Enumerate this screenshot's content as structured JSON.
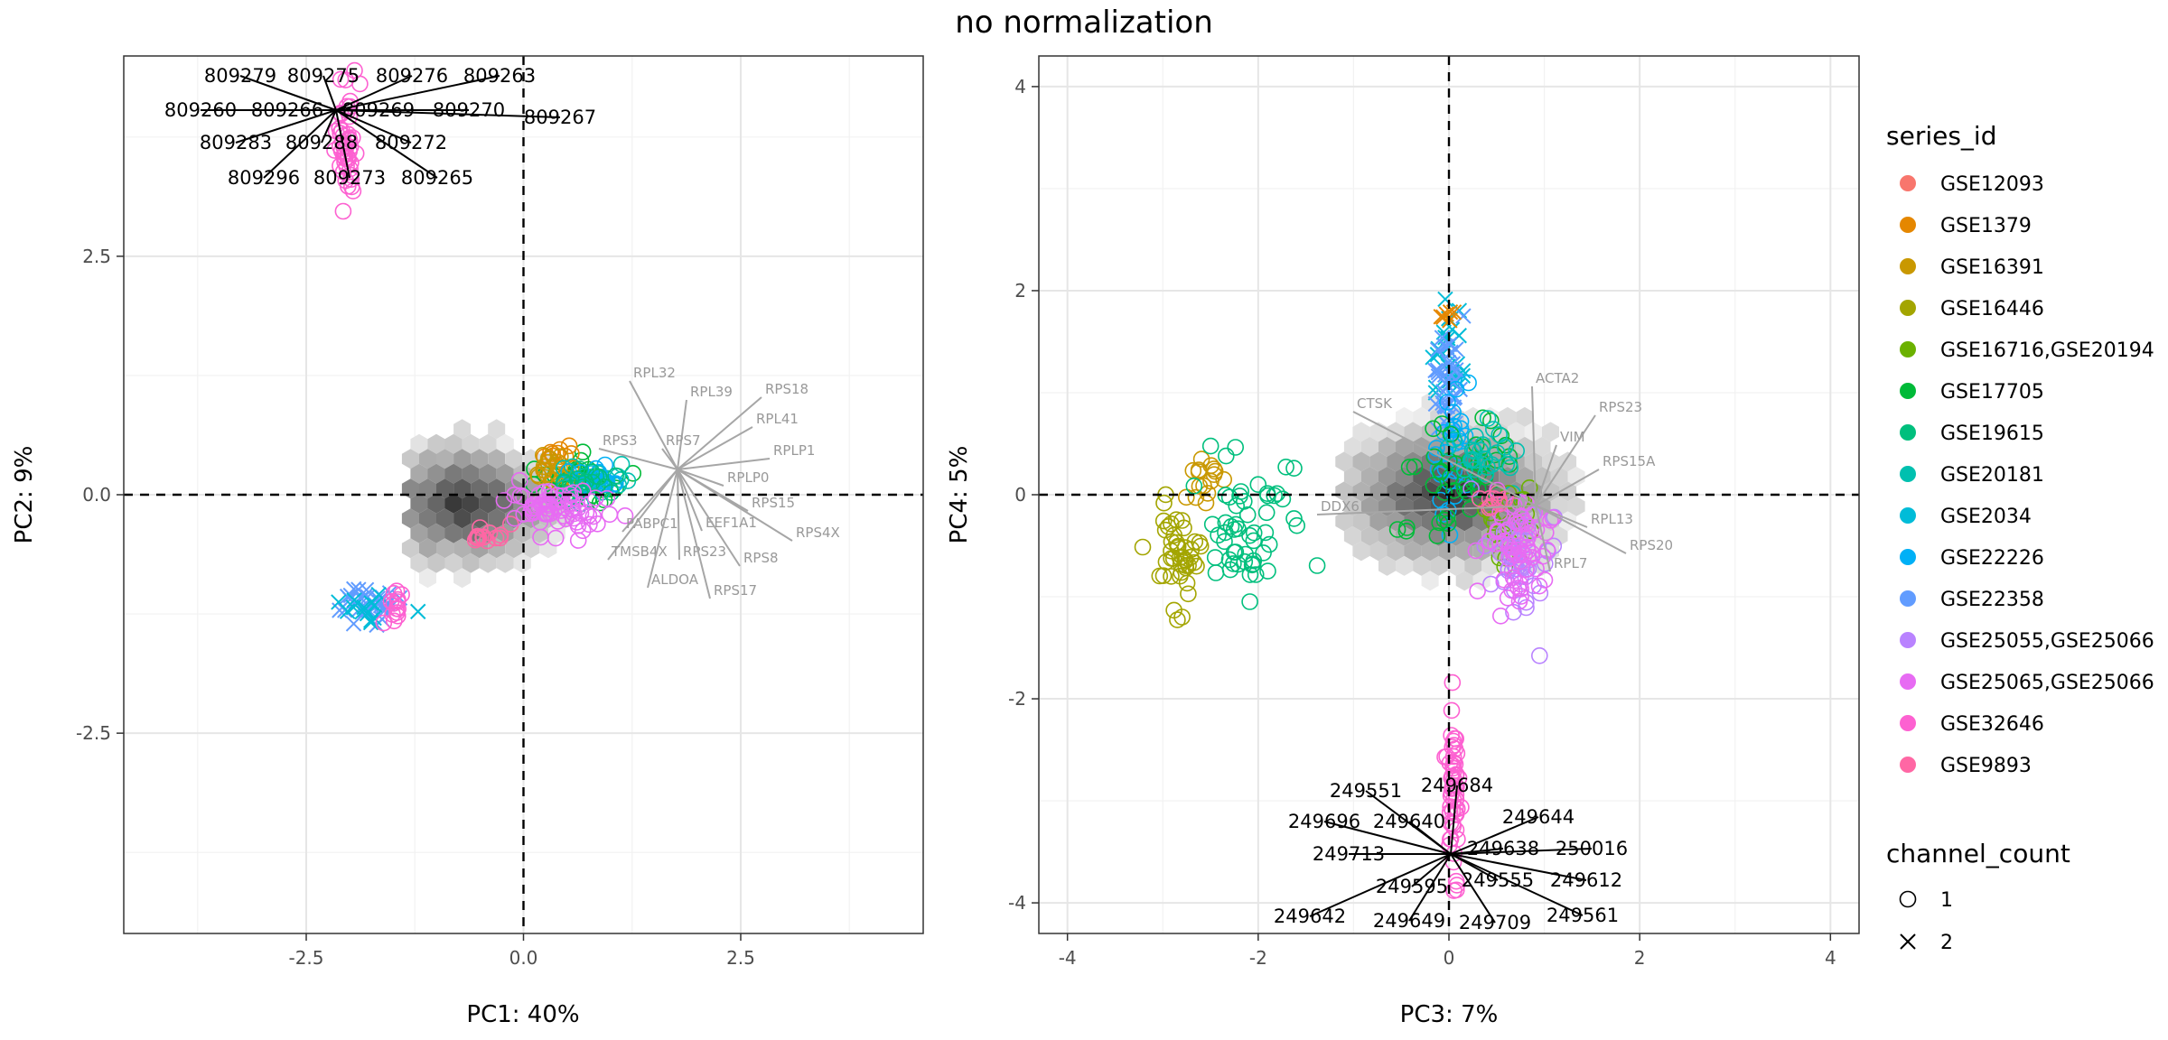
{
  "title": "no normalization",
  "colors": {
    "GSE12093": "#F8766D",
    "GSE1379": "#E58700",
    "GSE16391": "#C99800",
    "GSE16446": "#A3A500",
    "GSE16716,GSE20194": "#6BB100",
    "GSE17705": "#00BA38",
    "GSE19615": "#00BF7D",
    "GSE20181": "#00C0AF",
    "GSE2034": "#00BCD8",
    "GSE22226": "#00B0F6",
    "GSE22358": "#619CFF",
    "GSE25055,GSE25066": "#B983FF",
    "GSE25065,GSE25066": "#E76BF3",
    "GSE32646": "#FD61D1",
    "GSE9893": "#FF67A4"
  },
  "legend": {
    "series_title": "series_id",
    "series": [
      "GSE12093",
      "GSE1379",
      "GSE16391",
      "GSE16446",
      "GSE16716,GSE20194",
      "GSE17705",
      "GSE19615",
      "GSE20181",
      "GSE2034",
      "GSE22226",
      "GSE22358",
      "GSE25055,GSE25066",
      "GSE25065,GSE25066",
      "GSE32646",
      "GSE9893"
    ],
    "shape_title": "channel_count",
    "shapes": [
      {
        "label": "1",
        "shape": "circle"
      },
      {
        "label": "2",
        "shape": "cross"
      }
    ]
  },
  "chart_data": [
    {
      "type": "scatter",
      "xlabel": "PC1: 40%",
      "ylabel": "PC2: 9%",
      "xlim": [
        -4.6,
        4.6
      ],
      "ylim": [
        -4.6,
        4.6
      ],
      "xticks": [
        -2.5,
        0.0,
        2.5
      ],
      "yticks": [
        -2.5,
        0.0,
        2.5
      ],
      "xtick_labels": [
        "-2.5",
        "0.0",
        "2.5"
      ],
      "ytick_labels": [
        "-2.5",
        "0.0",
        "2.5"
      ],
      "grid": true,
      "clusters": [
        {
          "series": "GSE32646",
          "shape": "circle",
          "cx": -2.05,
          "cy": 3.7,
          "sx": 0.06,
          "sy": 0.3,
          "n": 50
        },
        {
          "series": "GSE22358",
          "shape": "cross",
          "cx": -1.75,
          "cy": -1.15,
          "sx": 0.22,
          "sy": 0.1,
          "n": 30
        },
        {
          "series": "GSE2034",
          "shape": "cross",
          "cx": -1.8,
          "cy": -1.2,
          "sx": 0.2,
          "sy": 0.1,
          "n": 14
        },
        {
          "series": "GSE32646",
          "shape": "circle",
          "cx": -1.5,
          "cy": -1.1,
          "sx": 0.05,
          "sy": 0.2,
          "n": 14
        },
        {
          "series": "GSE17705",
          "shape": "circle",
          "cx": 0.6,
          "cy": 0.15,
          "sx": 0.25,
          "sy": 0.12,
          "n": 40
        },
        {
          "series": "GSE1379",
          "shape": "circle",
          "cx": 0.4,
          "cy": 0.4,
          "sx": 0.1,
          "sy": 0.06,
          "n": 14
        },
        {
          "series": "GSE16391",
          "shape": "circle",
          "cx": 0.3,
          "cy": 0.25,
          "sx": 0.15,
          "sy": 0.1,
          "n": 18
        },
        {
          "series": "GSE20181",
          "shape": "circle",
          "cx": 0.7,
          "cy": 0.15,
          "sx": 0.2,
          "sy": 0.1,
          "n": 25
        },
        {
          "series": "GSE22226",
          "shape": "circle",
          "cx": 0.8,
          "cy": 0.2,
          "sx": 0.15,
          "sy": 0.08,
          "n": 15
        },
        {
          "series": "GSE19615",
          "shape": "circle",
          "cx": 0.7,
          "cy": 0.1,
          "sx": 0.2,
          "sy": 0.1,
          "n": 20
        },
        {
          "series": "GSE9893",
          "shape": "circle",
          "cx": -0.4,
          "cy": -0.45,
          "sx": 0.15,
          "sy": 0.05,
          "n": 15
        },
        {
          "series": "GSE25065,GSE25066",
          "shape": "circle",
          "cx": 0.4,
          "cy": -0.15,
          "sx": 0.3,
          "sy": 0.12,
          "n": 70
        }
      ],
      "loadings_labels": [
        "RPL39",
        "RPS18",
        "RPL32",
        "RPL41",
        "RPS7",
        "RPLP1",
        "RPS3",
        "RPLP0",
        "RPS15",
        "RPS4X",
        "PABPC1",
        "EEF1A1",
        "TMSB4X",
        "RPS23",
        "RPS8",
        "ALDOA",
        "RPS17"
      ],
      "point_labels": [
        "809279",
        "809275",
        "809276",
        "809263",
        "809260",
        "809266",
        "809269",
        "809270",
        "809267",
        "809283",
        "809288",
        "809272",
        "809296",
        "809273",
        "809265"
      ]
    },
    {
      "type": "scatter",
      "xlabel": "PC3: 7%",
      "ylabel": "PC4: 5%",
      "xlim": [
        -4.3,
        4.3
      ],
      "ylim": [
        -4.3,
        4.3
      ],
      "xticks": [
        -4,
        -2,
        0,
        2,
        4
      ],
      "yticks": [
        -4,
        -2,
        2,
        4
      ],
      "xtick_labels": [
        "-4",
        "-2",
        "0",
        "2",
        "4"
      ],
      "ytick_labels": [
        "-4",
        "-2",
        "2",
        "4"
      ],
      "zero_tick_label": "0",
      "grid": true,
      "clusters": [
        {
          "series": "GSE16446",
          "shape": "circle",
          "cx": -2.8,
          "cy": -0.55,
          "sx": 0.12,
          "sy": 0.3,
          "n": 45
        },
        {
          "series": "GSE16391",
          "shape": "circle",
          "cx": -2.55,
          "cy": 0.15,
          "sx": 0.1,
          "sy": 0.12,
          "n": 16
        },
        {
          "series": "GSE19615",
          "shape": "circle",
          "cx": -2.1,
          "cy": -0.3,
          "sx": 0.22,
          "sy": 0.35,
          "n": 55
        },
        {
          "series": "GSE2034",
          "shape": "cross",
          "cx": 0.0,
          "cy": 1.35,
          "sx": 0.08,
          "sy": 0.22,
          "n": 25
        },
        {
          "series": "GSE22358",
          "shape": "cross",
          "cx": 0.0,
          "cy": 1.0,
          "sx": 0.07,
          "sy": 0.28,
          "n": 40
        },
        {
          "series": "GSE1379",
          "shape": "cross",
          "cx": 0.0,
          "cy": 1.75,
          "sx": 0.06,
          "sy": 0.04,
          "n": 6
        },
        {
          "series": "GSE22226",
          "shape": "circle",
          "cx": 0.0,
          "cy": 0.45,
          "sx": 0.1,
          "sy": 0.3,
          "n": 30
        },
        {
          "series": "GSE17705",
          "shape": "circle",
          "cx": 0.1,
          "cy": 0.2,
          "sx": 0.25,
          "sy": 0.25,
          "n": 45
        },
        {
          "series": "GSE20181",
          "shape": "circle",
          "cx": 0.4,
          "cy": 0.4,
          "sx": 0.2,
          "sy": 0.15,
          "n": 25
        },
        {
          "series": "GSE16716,GSE20194",
          "shape": "circle",
          "cx": 0.6,
          "cy": -0.4,
          "sx": 0.15,
          "sy": 0.25,
          "n": 20
        },
        {
          "series": "GSE25055,GSE25066",
          "shape": "circle",
          "cx": 0.75,
          "cy": -0.6,
          "sx": 0.2,
          "sy": 0.3,
          "n": 45
        },
        {
          "series": "GSE25065,GSE25066",
          "shape": "circle",
          "cx": 0.75,
          "cy": -0.45,
          "sx": 0.2,
          "sy": 0.3,
          "n": 60
        },
        {
          "series": "GSE9893",
          "shape": "circle",
          "cx": 0.45,
          "cy": -0.05,
          "sx": 0.07,
          "sy": 0.05,
          "n": 10
        },
        {
          "series": "GSE32646",
          "shape": "circle",
          "cx": 0.05,
          "cy": -2.8,
          "sx": 0.025,
          "sy": 0.45,
          "n": 60
        }
      ],
      "loadings_labels": [
        "ACTA2",
        "RPS23",
        "CTSK",
        "VIM",
        "RPS15A",
        "DDX6",
        "RPL13",
        "RPS20",
        "RPL7"
      ],
      "point_labels": [
        "249551",
        "249684",
        "249644",
        "249696",
        "249640",
        "249638",
        "250016",
        "249713",
        "249612",
        "249595",
        "249555",
        "249642",
        "249649",
        "249709",
        "249561"
      ]
    }
  ]
}
